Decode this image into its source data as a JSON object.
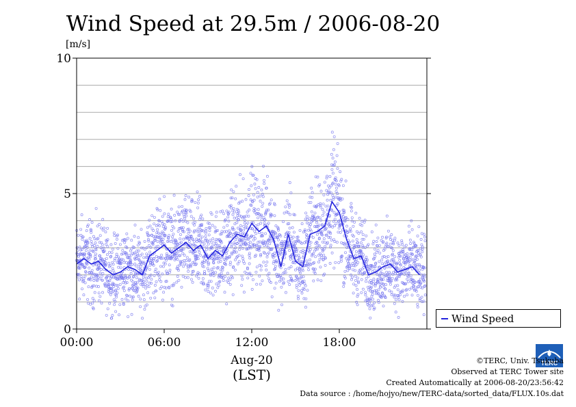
{
  "chart_data": {
    "type": "scatter+line",
    "title": "Wind Speed at 29.5m / 2006-08-20",
    "ylabel": "[m/s]",
    "ylim": [
      0,
      10
    ],
    "yticks": [
      "0",
      "5",
      "10"
    ],
    "xlim": [
      "00:00",
      "24:00"
    ],
    "xticks": [
      "00:00",
      "06:00",
      "12:00",
      "18:00"
    ],
    "xlabel_date": "Aug-20",
    "xlabel_zone": "(LST)",
    "grid": true,
    "legend_position": "bottom-right outside plot",
    "series": [
      {
        "name": "Wind Speed",
        "style": "line with 10s scatter points",
        "x_hours": [
          0,
          0.5,
          1,
          1.5,
          2,
          2.5,
          3,
          3.5,
          4,
          4.5,
          5,
          5.5,
          6,
          6.5,
          7,
          7.5,
          8,
          8.5,
          9,
          9.5,
          10,
          10.5,
          11,
          11.5,
          12,
          12.5,
          13,
          13.5,
          14,
          14.5,
          15,
          15.5,
          16,
          16.5,
          17,
          17.5,
          18,
          18.5,
          19,
          19.5,
          20,
          20.5,
          21,
          21.5,
          22,
          22.5,
          23,
          23.5
        ],
        "y": [
          2.4,
          2.6,
          2.4,
          2.5,
          2.2,
          2.0,
          2.1,
          2.3,
          2.2,
          2.0,
          2.7,
          2.9,
          3.1,
          2.8,
          3.0,
          3.2,
          2.9,
          3.1,
          2.6,
          2.9,
          2.7,
          3.2,
          3.5,
          3.4,
          3.9,
          3.6,
          3.8,
          3.3,
          2.3,
          3.5,
          2.5,
          2.3,
          3.5,
          3.6,
          3.8,
          4.7,
          4.3,
          3.3,
          2.6,
          2.7,
          2.0,
          2.1,
          2.3,
          2.4,
          2.1,
          2.2,
          2.3,
          2.0
        ]
      }
    ],
    "colors": {
      "line": "#2222dd",
      "points": "#7777ee",
      "grid": "#aaaaaa"
    }
  },
  "legend": {
    "label": "Wind Speed"
  },
  "credits": {
    "copyright": "©TERC, Univ. Tsukuba",
    "observed": "Observed at TERC Tower site",
    "created": "Created Automatically at 2006-08-20/23:56:42",
    "source": "Data source : /home/hojyo/new/TERC-data/sorted_data/FLUX.10s.dat",
    "logo_text": "TERC"
  }
}
